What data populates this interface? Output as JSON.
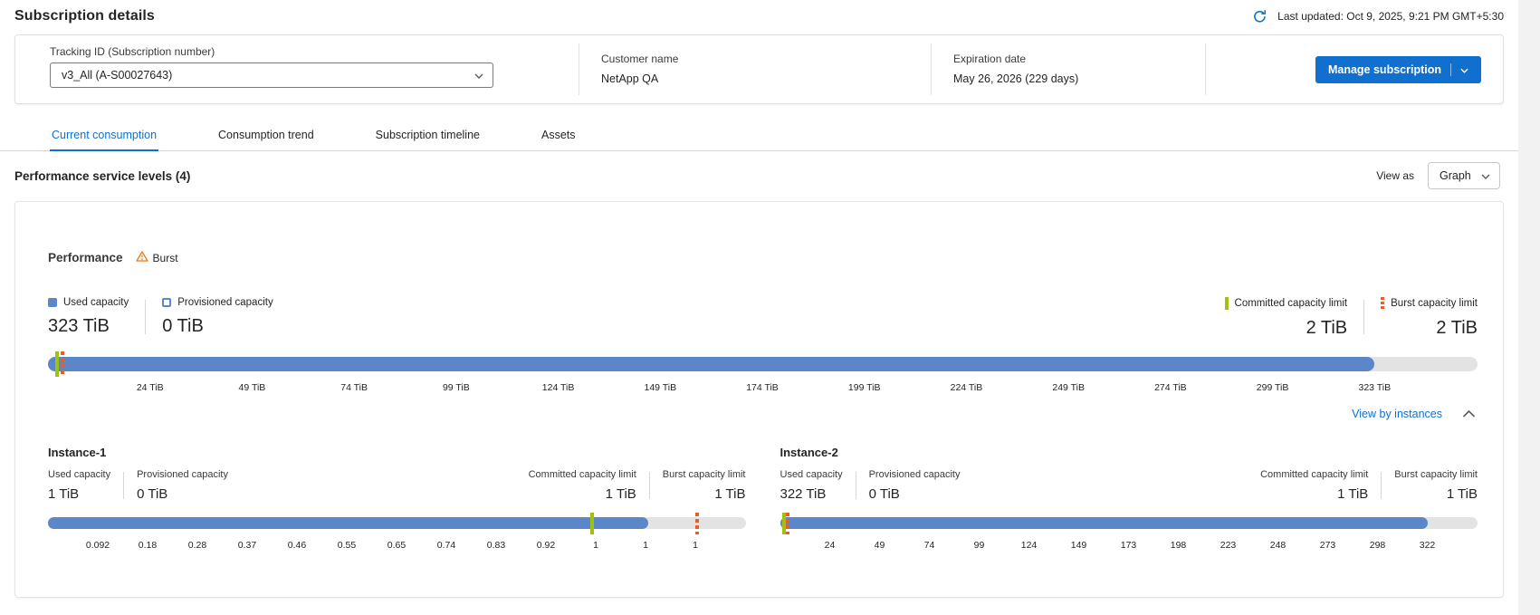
{
  "colors": {
    "accent_blue": "#1170CF",
    "bar_blue": "#5B87C8",
    "bar_track_gray": "#E3E3E3",
    "committed_green": "#A0C20E",
    "burst_orange": "#EE5B23",
    "warning_orange": "#ED7615"
  },
  "header": {
    "title": "Subscription details",
    "last_updated": "Last updated: Oct 9, 2025, 9:21 PM GMT+5:30"
  },
  "subscription_card": {
    "tracking": {
      "label": "Tracking ID (Subscription number)",
      "value": "v3_All (A-S00027643)"
    },
    "customer": {
      "label": "Customer name",
      "value": "NetApp QA"
    },
    "expiration": {
      "label": "Expiration date",
      "value": "May 26, 2026 (229 days)"
    },
    "manage_button_label": "Manage subscription"
  },
  "tabs": [
    {
      "label": "Current consumption",
      "active": true
    },
    {
      "label": "Consumption trend",
      "active": false
    },
    {
      "label": "Subscription timeline",
      "active": false
    },
    {
      "label": "Assets",
      "active": false
    }
  ],
  "section_header": {
    "title": "Performance service levels (4)",
    "view_as_label": "View as",
    "view_as_value": "Graph"
  },
  "performance": {
    "title": "Performance",
    "burst_badge": "Burst",
    "legend": {
      "used": "Used capacity",
      "provisioned": "Provisioned capacity",
      "committed": "Committed capacity limit",
      "burst": "Burst capacity limit"
    },
    "overall": {
      "used_value": "323 TiB",
      "provisioned_value": "0 TiB",
      "committed_value": "2 TiB",
      "burst_value": "2 TiB"
    },
    "view_by_instances": "View by instances",
    "instances": [
      {
        "name": "Instance-1",
        "used_value": "1 TiB",
        "provisioned_value": "0 TiB",
        "committed_value": "1 TiB",
        "burst_value": "1 TiB"
      },
      {
        "name": "Instance-2",
        "used_value": "322 TiB",
        "provisioned_value": "0 TiB",
        "committed_value": "1 TiB",
        "burst_value": "1 TiB"
      }
    ]
  },
  "capacity_bars": {
    "overall": {
      "fill_pct": 92.8,
      "committed_marker_pct": 0.5,
      "burst_marker_pct": 0.9,
      "last_tick_pct": 92.8,
      "tick_labels": [
        "24 TiB",
        "49 TiB",
        "74 TiB",
        "99 TiB",
        "124 TiB",
        "149 TiB",
        "174 TiB",
        "199 TiB",
        "224 TiB",
        "249 TiB",
        "274 TiB",
        "299 TiB",
        "323 TiB"
      ]
    },
    "instance1": {
      "fill_pct": 86.0,
      "committed_marker_pct": 77.8,
      "burst_marker_pct": 92.8,
      "last_tick_pct": 92.8,
      "tick_labels": [
        "0.092",
        "0.18",
        "0.28",
        "0.37",
        "0.46",
        "0.55",
        "0.65",
        "0.74",
        "0.83",
        "0.92",
        "1",
        "1",
        "1"
      ]
    },
    "instance2": {
      "fill_pct": 92.8,
      "committed_marker_pct": 0.3,
      "burst_marker_pct": 0.9,
      "last_tick_pct": 92.8,
      "tick_labels": [
        "24",
        "49",
        "74",
        "99",
        "124",
        "149",
        "173",
        "198",
        "223",
        "248",
        "273",
        "298",
        "322"
      ]
    }
  },
  "chart_data": [
    {
      "type": "bar",
      "title": "Performance overall capacity",
      "unit": "TiB",
      "used": 323,
      "provisioned": 0,
      "committed_limit": 2,
      "burst_limit": 2,
      "axis_ticks": [
        24,
        49,
        74,
        99,
        124,
        149,
        174,
        199,
        224,
        249,
        274,
        299,
        323
      ]
    },
    {
      "type": "bar",
      "title": "Instance-1 capacity",
      "unit": "TiB",
      "used": 1,
      "provisioned": 0,
      "committed_limit": 1,
      "burst_limit": 1,
      "axis_ticks": [
        0.092,
        0.18,
        0.28,
        0.37,
        0.46,
        0.55,
        0.65,
        0.74,
        0.83,
        0.92,
        1,
        1,
        1
      ]
    },
    {
      "type": "bar",
      "title": "Instance-2 capacity",
      "unit": "TiB",
      "used": 322,
      "provisioned": 0,
      "committed_limit": 1,
      "burst_limit": 1,
      "axis_ticks": [
        24,
        49,
        74,
        99,
        124,
        149,
        173,
        198,
        223,
        248,
        273,
        298,
        322
      ]
    }
  ]
}
